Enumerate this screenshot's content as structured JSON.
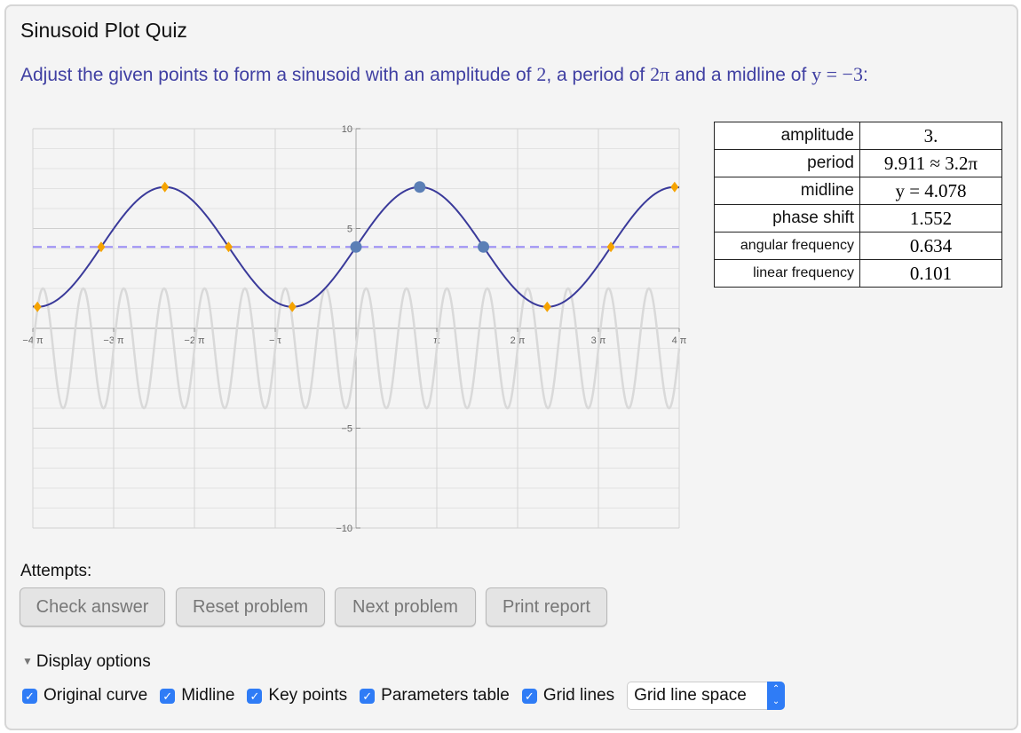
{
  "title": "Sinusoid Plot Quiz",
  "instruction": {
    "text": "Adjust the given points to form a sinusoid with an amplitude of ",
    "amp": "2",
    "mid1": ", a period of ",
    "period": "2π",
    "mid2": " and a midline of ",
    "midline": "y = −3",
    "end": ":"
  },
  "chart_data": {
    "type": "line",
    "xlim": [
      -12.566,
      12.566
    ],
    "ylim": [
      -10,
      10
    ],
    "x_ticks": [
      {
        "v": -4,
        "label": "−4 π"
      },
      {
        "v": -3,
        "label": "−3 π"
      },
      {
        "v": -2,
        "label": "−2 π"
      },
      {
        "v": -1,
        "label": "−π"
      },
      {
        "v": 1,
        "label": "π"
      },
      {
        "v": 2,
        "label": "2 π"
      },
      {
        "v": 3,
        "label": "3 π"
      },
      {
        "v": 4,
        "label": "4 π"
      }
    ],
    "y_ticks": [
      {
        "v": 10,
        "label": "10"
      },
      {
        "v": 5,
        "label": "5"
      },
      {
        "v": -5,
        "label": "−5"
      },
      {
        "v": -10,
        "label": "−10"
      }
    ],
    "grid": true,
    "series": [
      {
        "role": "original",
        "amplitude": 3,
        "angular_frequency": 4,
        "midline": -1,
        "peak_x": 0.3927,
        "color": "#d9d9d9"
      },
      {
        "role": "current",
        "amplitude": 3,
        "angular_frequency": 0.634,
        "midline": 4.078,
        "rise_x": 0,
        "color": "#3a3a9a"
      }
    ],
    "midline": {
      "y": 4.078,
      "color": "#9a8cf5"
    },
    "draggable_points": [
      [
        0,
        4.078
      ],
      [
        2.478,
        7.078
      ],
      [
        4.955,
        4.078
      ]
    ],
    "draggable_color": "#5b7fb6",
    "key_point_color": "#f5a300"
  },
  "params_table": [
    {
      "label": "amplitude",
      "value": "3."
    },
    {
      "label": "period",
      "value": "9.911 ≈ 3.2π"
    },
    {
      "label": "midline",
      "value": "y = 4.078"
    },
    {
      "label": "phase shift",
      "value": "1.552"
    },
    {
      "label": "angular frequency",
      "value": "0.634"
    },
    {
      "label": "linear frequency",
      "value": "0.101"
    }
  ],
  "attempts_label": "Attempts:",
  "buttons": {
    "check": "Check answer",
    "reset": "Reset problem",
    "next": "Next problem",
    "print": "Print report"
  },
  "display_options": {
    "label": "Display options",
    "original": "Original curve",
    "midline": "Midline",
    "key_points": "Key points",
    "params": "Parameters table",
    "grid": "Grid lines",
    "grid_space": "Grid line space"
  }
}
